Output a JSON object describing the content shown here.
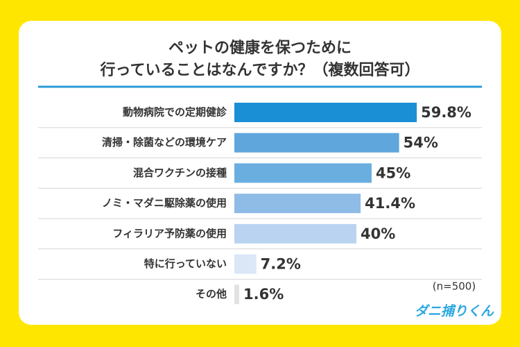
{
  "chart_data": {
    "type": "bar",
    "orientation": "horizontal",
    "title": [
      "ペットの健康を保つために",
      "行っていることはなんですか？（複数回答可）"
    ],
    "categories": [
      "動物病院での定期健診",
      "清掃・除菌などの環境ケア",
      "混合ワクチンの接種",
      "ノミ・マダニ駆除薬の使用",
      "フィラリア予防薬の使用",
      "特に行っていない",
      "その他"
    ],
    "values": [
      59.8,
      54,
      45,
      41.4,
      40,
      7.2,
      1.6
    ],
    "value_labels": [
      "59.8%",
      "54%",
      "45%",
      "41.4%",
      "40%",
      "7.2%",
      "1.6%"
    ],
    "colors": [
      "#1a8fd6",
      "#5fa6dd",
      "#6aaee0",
      "#8fbbe7",
      "#b9d3f0",
      "#dbe7f7",
      "#e2e2e2"
    ],
    "note": "(n=500)",
    "brand": "ダニ捕りくん"
  }
}
